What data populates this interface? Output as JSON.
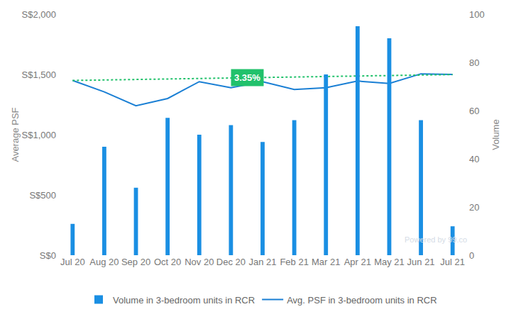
{
  "chart_data": {
    "type": "bar",
    "categories": [
      "Jul 20",
      "Aug 20",
      "Sep 20",
      "Oct 20",
      "Nov 20",
      "Dec 20",
      "Jan 21",
      "Feb 21",
      "Mar 21",
      "Apr 21",
      "May 21",
      "Jun 21",
      "Jul 21"
    ],
    "series": [
      {
        "name": "Avg. PSF in 3-bedroom units in RCR",
        "type": "line",
        "color": "#1a7fd4",
        "values": [
          1450,
          1355,
          1240,
          1300,
          1440,
          1390,
          1440,
          1375,
          1390,
          1445,
          1425,
          1505,
          1500
        ]
      },
      {
        "name": "Volume in 3-bedroom units in RCR",
        "type": "bar",
        "axis": "y2",
        "color": "#1a8fe3",
        "values": [
          13,
          45,
          28,
          57,
          50,
          54,
          47,
          56,
          75,
          95,
          90,
          56,
          12
        ]
      }
    ],
    "trend": {
      "start": 1450,
      "end": 1499,
      "label": "3.35%",
      "color": "#21c16b",
      "line_style": "dotted"
    },
    "y_label": "Average PSF",
    "y2_label": "Volume",
    "ylim": [
      0,
      2000
    ],
    "yticks": [
      {
        "value": 0,
        "label": "S$0"
      },
      {
        "value": 500,
        "label": "S$500"
      },
      {
        "value": 1000,
        "label": "S$1,000"
      },
      {
        "value": 1500,
        "label": "S$1,500"
      },
      {
        "value": 2000,
        "label": "S$2,000"
      }
    ],
    "y2lim": [
      0,
      100
    ],
    "y2ticks": [
      0,
      20,
      40,
      60,
      80,
      100
    ],
    "watermark": "Powered by 99.co",
    "grid": false,
    "legend": "bottom"
  }
}
